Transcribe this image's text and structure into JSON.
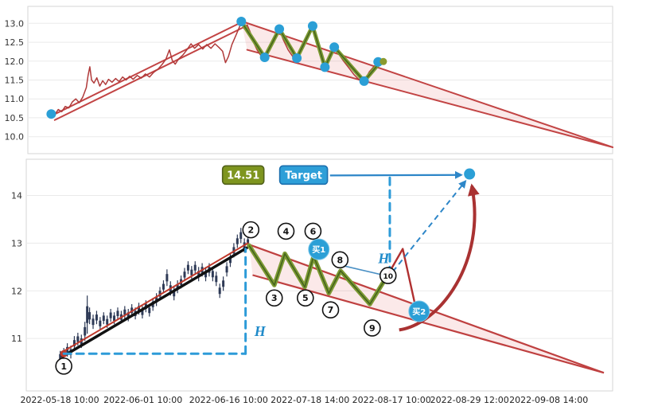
{
  "page": {
    "background_color": "#ffffff"
  },
  "chart_data": [
    {
      "id": "overview",
      "type": "line",
      "y_ticks": [
        "13.0",
        "12.5",
        "12.0",
        "11.5",
        "11.0",
        "10.5",
        "10.0"
      ],
      "y_tick_values": [
        13.0,
        12.5,
        12.0,
        11.5,
        11.0,
        10.5,
        10.0
      ],
      "ylim": [
        9.55,
        13.45
      ],
      "grid": "horizontal",
      "colors": {
        "price": "#b03a3a",
        "trend": "#c24444",
        "wedge_fill": "rgba(228,120,120,0.16)",
        "zigzag": "#7d9a33",
        "zigzag_core": "#44631d",
        "marker": "#2b9fd6",
        "end_dot": "#8a9a2f"
      },
      "price_line": [
        [
          4,
          10.62
        ],
        [
          4.6,
          10.58
        ],
        [
          5.2,
          10.72
        ],
        [
          5.8,
          10.66
        ],
        [
          6.4,
          10.8
        ],
        [
          7,
          10.76
        ],
        [
          7.6,
          10.92
        ],
        [
          8.2,
          11.0
        ],
        [
          8.8,
          10.9
        ],
        [
          9.4,
          11.05
        ],
        [
          10,
          11.3
        ],
        [
          10.3,
          11.62
        ],
        [
          10.6,
          11.85
        ],
        [
          10.9,
          11.5
        ],
        [
          11.3,
          11.42
        ],
        [
          11.8,
          11.56
        ],
        [
          12.3,
          11.34
        ],
        [
          12.8,
          11.48
        ],
        [
          13.3,
          11.38
        ],
        [
          13.8,
          11.52
        ],
        [
          14.4,
          11.44
        ],
        [
          15,
          11.54
        ],
        [
          15.6,
          11.46
        ],
        [
          16.2,
          11.58
        ],
        [
          16.8,
          11.5
        ],
        [
          17.4,
          11.6
        ],
        [
          18,
          11.52
        ],
        [
          18.7,
          11.62
        ],
        [
          19.4,
          11.55
        ],
        [
          20.1,
          11.66
        ],
        [
          20.8,
          11.58
        ],
        [
          21.5,
          11.7
        ],
        [
          22.2,
          11.78
        ],
        [
          22.9,
          11.9
        ],
        [
          23.6,
          12.05
        ],
        [
          24.2,
          12.3
        ],
        [
          24.7,
          12.02
        ],
        [
          25.2,
          11.92
        ],
        [
          25.8,
          12.06
        ],
        [
          26.5,
          12.16
        ],
        [
          27.2,
          12.3
        ],
        [
          27.9,
          12.46
        ],
        [
          28.5,
          12.34
        ],
        [
          29.2,
          12.44
        ],
        [
          29.9,
          12.32
        ],
        [
          30.6,
          12.44
        ],
        [
          31.3,
          12.34
        ],
        [
          32,
          12.46
        ],
        [
          32.7,
          12.36
        ],
        [
          33.3,
          12.26
        ],
        [
          33.8,
          11.96
        ],
        [
          34.3,
          12.12
        ],
        [
          34.9,
          12.44
        ],
        [
          35.4,
          12.62
        ],
        [
          35.9,
          12.8
        ],
        [
          36.5,
          13.02
        ],
        [
          37,
          12.86
        ],
        [
          37.5,
          12.96
        ],
        [
          38,
          12.78
        ],
        [
          38.6,
          12.5
        ],
        [
          39.2,
          12.3
        ],
        [
          39.8,
          12.16
        ],
        [
          40.5,
          12.08
        ],
        [
          41.2,
          12.3
        ],
        [
          41.9,
          12.55
        ],
        [
          42.6,
          12.72
        ],
        [
          43,
          12.84
        ],
        [
          43.7,
          12.56
        ],
        [
          44.5,
          12.3
        ],
        [
          45.3,
          12.12
        ],
        [
          46,
          12.06
        ],
        [
          46.8,
          12.4
        ],
        [
          47.6,
          12.66
        ],
        [
          48.7,
          12.9
        ],
        [
          49.4,
          12.55
        ],
        [
          50.1,
          12.15
        ],
        [
          50.8,
          11.86
        ],
        [
          51.6,
          12.12
        ],
        [
          52.4,
          12.35
        ],
        [
          53.2,
          12.18
        ],
        [
          54,
          12.0
        ],
        [
          54.9,
          11.82
        ],
        [
          55.8,
          11.64
        ],
        [
          56.7,
          11.5
        ],
        [
          57.5,
          11.46
        ],
        [
          58.4,
          11.72
        ],
        [
          59.3,
          11.88
        ],
        [
          60.3,
          11.96
        ]
      ],
      "trend_lines": [
        {
          "name": "pole-line-1",
          "p1": [
            4,
            10.55
          ],
          "p2": [
            36.8,
            13.05
          ],
          "w": 2
        },
        {
          "name": "pole-line-2",
          "p1": [
            4.6,
            10.44
          ],
          "p2": [
            37.2,
            12.92
          ],
          "w": 2
        },
        {
          "name": "wedge-upper-line",
          "p1": [
            36.5,
            13.06
          ],
          "p2": [
            100,
            9.72
          ],
          "w": 2
        },
        {
          "name": "wedge-lower-line",
          "p1": [
            37.5,
            12.3
          ],
          "p2": [
            100,
            9.72
          ],
          "w": 2
        }
      ],
      "wedge_fill": [
        [
          36.5,
          13.06
        ],
        [
          100,
          9.72
        ],
        [
          37.5,
          12.3
        ]
      ],
      "zigzag": [
        [
          36.5,
          13.05
        ],
        [
          40.5,
          12.1
        ],
        [
          43,
          12.85
        ],
        [
          46,
          12.08
        ],
        [
          48.7,
          12.93
        ],
        [
          50.8,
          11.84
        ],
        [
          52.4,
          12.37
        ],
        [
          57.5,
          11.47
        ],
        [
          60.3,
          11.98
        ]
      ],
      "markers": [
        [
          4,
          10.6
        ],
        [
          36.5,
          13.05
        ],
        [
          40.5,
          12.1
        ],
        [
          43,
          12.85
        ],
        [
          46,
          12.08
        ],
        [
          48.7,
          12.93
        ],
        [
          50.8,
          11.84
        ],
        [
          52.4,
          12.37
        ],
        [
          57.5,
          11.47
        ],
        [
          59.9,
          11.98
        ]
      ],
      "end_dot": [
        60.8,
        11.99
      ]
    },
    {
      "id": "detail",
      "type": "candlestick",
      "x_ticks": [
        {
          "label": "2022-05-18 10:00",
          "x": 5.7
        },
        {
          "label": "2022-06-01 10:00",
          "x": 19.9
        },
        {
          "label": "2022-06-16 10:00",
          "x": 34.5
        },
        {
          "label": "2022-07-18 14:00",
          "x": 48.4
        },
        {
          "label": "2022-08-17 10:00",
          "x": 62.3
        },
        {
          "label": "2022-08-29 12:00",
          "x": 75.6
        },
        {
          "label": "2022-09-08 14:00",
          "x": 89.1
        }
      ],
      "y_ticks": [
        "14",
        "13",
        "12",
        "11"
      ],
      "y_tick_values": [
        14,
        13,
        12,
        11
      ],
      "ylim": [
        9.9,
        14.76
      ],
      "grid": "horizontal",
      "colors": {
        "trend": "#bf4040",
        "wedge_fill": "rgba(228,120,120,0.16)",
        "candle": "#2e3a56",
        "zigzag": "#7d9a33",
        "zigzag_core": "#44631d",
        "measure": "#2d9bd8",
        "marker": "#2b9fd6",
        "projection": "#a93232"
      },
      "candles": [
        [
          5.8,
          10.5,
          10.74
        ],
        [
          6.4,
          10.55,
          10.8
        ],
        [
          7.0,
          10.62,
          10.9
        ],
        [
          7.6,
          10.58,
          10.85
        ],
        [
          8.2,
          10.75,
          11.05
        ],
        [
          8.8,
          10.85,
          11.12
        ],
        [
          9.4,
          10.8,
          11.08
        ],
        [
          10.0,
          10.95,
          11.35
        ],
        [
          10.4,
          11.1,
          11.9
        ],
        [
          10.8,
          11.3,
          11.65
        ],
        [
          11.4,
          11.2,
          11.5
        ],
        [
          12.0,
          11.3,
          11.58
        ],
        [
          12.6,
          11.18,
          11.45
        ],
        [
          13.2,
          11.3,
          11.55
        ],
        [
          13.8,
          11.22,
          11.48
        ],
        [
          14.4,
          11.35,
          11.62
        ],
        [
          15.0,
          11.3,
          11.55
        ],
        [
          15.6,
          11.4,
          11.65
        ],
        [
          16.2,
          11.32,
          11.58
        ],
        [
          16.8,
          11.42,
          11.68
        ],
        [
          17.4,
          11.36,
          11.62
        ],
        [
          18.0,
          11.46,
          11.72
        ],
        [
          18.6,
          11.4,
          11.65
        ],
        [
          19.2,
          11.5,
          11.75
        ],
        [
          19.8,
          11.42,
          11.68
        ],
        [
          20.4,
          11.55,
          11.8
        ],
        [
          21.0,
          11.46,
          11.72
        ],
        [
          21.6,
          11.58,
          11.85
        ],
        [
          22.2,
          11.68,
          11.95
        ],
        [
          22.8,
          11.8,
          12.08
        ],
        [
          23.4,
          11.95,
          12.22
        ],
        [
          24.0,
          12.1,
          12.45
        ],
        [
          24.6,
          11.9,
          12.2
        ],
        [
          25.2,
          11.8,
          12.1
        ],
        [
          25.8,
          11.95,
          12.22
        ],
        [
          26.4,
          12.05,
          12.32
        ],
        [
          27.0,
          12.2,
          12.48
        ],
        [
          27.6,
          12.35,
          12.62
        ],
        [
          28.2,
          12.25,
          12.52
        ],
        [
          28.8,
          12.35,
          12.62
        ],
        [
          29.4,
          12.2,
          12.5
        ],
        [
          30.0,
          12.3,
          12.58
        ],
        [
          30.6,
          12.2,
          12.5
        ],
        [
          31.2,
          12.3,
          12.58
        ],
        [
          31.8,
          12.2,
          12.5
        ],
        [
          32.4,
          12.1,
          12.4
        ],
        [
          33.0,
          11.85,
          12.15
        ],
        [
          33.6,
          12.0,
          12.3
        ],
        [
          34.2,
          12.3,
          12.6
        ],
        [
          34.8,
          12.5,
          12.8
        ],
        [
          35.4,
          12.7,
          13.0
        ],
        [
          36.0,
          12.9,
          13.18
        ],
        [
          36.6,
          13.0,
          13.32
        ],
        [
          37.2,
          12.8,
          13.1
        ],
        [
          37.8,
          12.9,
          13.15
        ]
      ],
      "pole_lines": [
        {
          "p1": [
            6.2,
            10.62
          ],
          "p2": [
            37.6,
            12.9
          ],
          "color": "#111111",
          "w": 3.5
        },
        {
          "p1": [
            6.2,
            10.72
          ],
          "p2": [
            37.8,
            13.0
          ],
          "color": "#c0392b",
          "w": 2
        }
      ],
      "start_dot": [
        6.4,
        10.68
      ],
      "wedge_upper": [
        [
          38,
          12.97
        ],
        [
          98.5,
          10.28
        ]
      ],
      "wedge_lower": [
        [
          38.6,
          12.33
        ],
        [
          98.5,
          10.28
        ]
      ],
      "wedge_fill": [
        [
          38,
          12.97
        ],
        [
          98.5,
          10.28
        ],
        [
          38.6,
          12.33
        ]
      ],
      "zigzag": [
        [
          38,
          12.95
        ],
        [
          42.3,
          12.12
        ],
        [
          44.1,
          12.78
        ],
        [
          47.5,
          12.08
        ],
        [
          49,
          12.72
        ],
        [
          51.6,
          11.95
        ],
        [
          53.6,
          12.42
        ],
        [
          58.6,
          11.72
        ],
        [
          61.6,
          12.32
        ]
      ],
      "red_continuation": [
        [
          61.6,
          12.32
        ],
        [
          64.2,
          12.88
        ],
        [
          66.6,
          11.55
        ]
      ],
      "numbered_points": [
        {
          "n": "1",
          "x": 6.4,
          "y": 10.42
        },
        {
          "n": "2",
          "x": 38.3,
          "y": 13.28
        },
        {
          "n": "3",
          "x": 42.3,
          "y": 11.85
        },
        {
          "n": "4",
          "x": 44.3,
          "y": 13.25
        },
        {
          "n": "5",
          "x": 47.6,
          "y": 11.85
        },
        {
          "n": "6",
          "x": 48.9,
          "y": 13.25
        },
        {
          "n": "7",
          "x": 51.9,
          "y": 11.6
        },
        {
          "n": "8",
          "x": 53.5,
          "y": 12.65
        },
        {
          "n": "9",
          "x": 59.0,
          "y": 11.22
        },
        {
          "n": "10",
          "x": 61.7,
          "y": 12.32
        }
      ],
      "buy_markers": [
        {
          "label": "买1",
          "x": 49.9,
          "y": 12.87
        },
        {
          "label": "买2",
          "x": 67.0,
          "y": 11.57
        }
      ],
      "price_label": {
        "text": "14.51",
        "x": 37.0,
        "y": 14.42
      },
      "target_label": {
        "text": "Target",
        "x": 47.3,
        "y": 14.42
      },
      "target_point": {
        "x": 75.6,
        "y": 14.45
      },
      "target_arrow": {
        "from": [
          51.8,
          14.42
        ],
        "to": [
          74.2,
          14.43
        ]
      },
      "h_measures": [
        {
          "label": "H",
          "horizontal": [
            [
              6.4,
              10.68
            ],
            [
              37.4,
              10.68
            ]
          ],
          "vertical": [
            [
              37.4,
              10.68
            ],
            [
              37.4,
              12.88
            ]
          ],
          "label_pos": [
            38.9,
            11.05
          ]
        },
        {
          "label": "H",
          "vertical": [
            [
              62.0,
              12.35
            ],
            [
              62.0,
              14.45
            ]
          ],
          "label_pos": [
            60.0,
            12.58
          ]
        }
      ],
      "blue_line": [
        [
          53.2,
          12.55
        ],
        [
          63.0,
          12.27
        ]
      ],
      "dashed_arrow": {
        "from": [
          62.5,
          12.4
        ],
        "to": [
          74.9,
          14.3
        ]
      },
      "curved_arrow": {
        "path": [
          [
            63.6,
            11.18
          ],
          [
            70.5,
            11.3
          ],
          [
            78.5,
            12.6
          ],
          [
            76.0,
            14.2
          ]
        ]
      }
    }
  ]
}
